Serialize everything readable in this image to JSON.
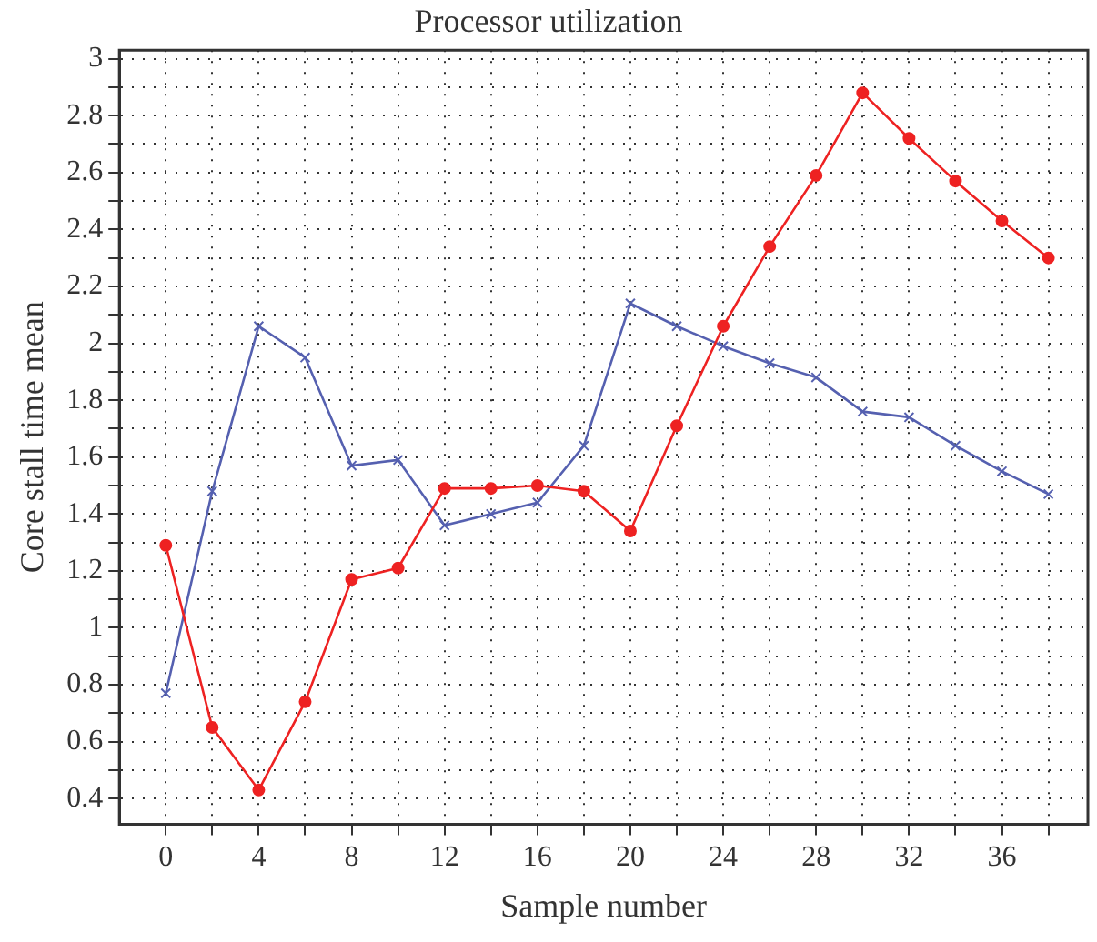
{
  "chart_data": {
    "type": "line",
    "title": "Processor utilization",
    "xlabel": "Sample number",
    "ylabel": "Core stall time mean",
    "x": [
      0,
      2,
      4,
      6,
      8,
      10,
      12,
      14,
      16,
      18,
      20,
      22,
      24,
      26,
      28,
      30,
      32,
      34,
      36,
      38
    ],
    "series": [
      {
        "color": "#ee2222",
        "marker": "circle",
        "values": [
          1.29,
          0.65,
          0.43,
          0.74,
          1.17,
          1.21,
          1.49,
          1.49,
          1.5,
          1.48,
          1.34,
          1.71,
          2.06,
          2.34,
          2.59,
          2.88,
          2.72,
          2.57,
          2.43,
          2.3
        ]
      },
      {
        "color": "#5560b0",
        "marker": "cross",
        "values": [
          0.77,
          1.48,
          2.06,
          1.95,
          1.57,
          1.59,
          1.36,
          1.4,
          1.44,
          1.64,
          2.14,
          2.06,
          1.99,
          1.93,
          1.88,
          1.76,
          1.74,
          1.64,
          1.55,
          1.47
        ]
      }
    ],
    "xlim": [
      -2,
      39.7
    ],
    "ylim": [
      0.31,
      3.03
    ],
    "xticks": [
      0,
      {
        "value": 2,
        "label": null
      },
      4,
      {
        "value": 6,
        "label": null
      },
      8,
      {
        "value": 10,
        "label": null
      },
      12,
      {
        "value": 14,
        "label": null
      },
      16,
      {
        "value": 18,
        "label": null
      },
      20,
      {
        "value": 22,
        "label": null
      },
      24,
      {
        "value": 26,
        "label": null
      },
      28,
      {
        "value": 30,
        "label": null
      },
      32,
      {
        "value": 34,
        "label": null
      },
      36,
      {
        "value": 38,
        "label": null
      }
    ],
    "yticks": [
      0.4,
      {
        "value": 0.5,
        "label": null
      },
      0.6,
      {
        "value": 0.7,
        "label": null
      },
      0.8,
      {
        "value": 0.9,
        "label": null
      },
      1,
      {
        "value": 1.1,
        "label": null
      },
      1.2,
      {
        "value": 1.3,
        "label": null
      },
      1.4,
      {
        "value": 1.5,
        "label": null
      },
      1.6,
      {
        "value": 1.7,
        "label": null
      },
      1.8,
      {
        "value": 1.9,
        "label": null
      },
      2,
      {
        "value": 2.1,
        "label": null
      },
      2.2,
      {
        "value": 2.3,
        "label": null
      },
      2.4,
      {
        "value": 2.5,
        "label": null
      },
      2.6,
      {
        "value": 2.7,
        "label": null
      },
      2.8,
      {
        "value": 2.9,
        "label": null
      },
      3
    ],
    "grid": true,
    "legend": false,
    "line_style": "solid"
  }
}
